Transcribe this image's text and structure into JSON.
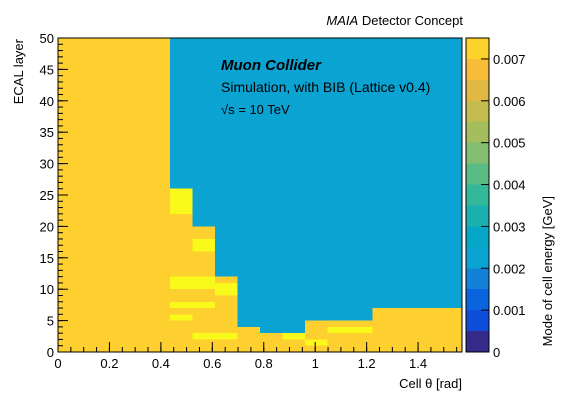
{
  "header": {
    "experiment": "MAIA",
    "concept": "Detector Concept"
  },
  "annotation": {
    "line1": "Muon Collider",
    "line2": "Simulation, with BIB (Lattice v0.4)",
    "line3_sqrt": "√s",
    "line3_value": " = 10 TeV"
  },
  "chart_data": {
    "type": "heatmap",
    "xlabel_prefix": "Cell",
    "xlabel": "θ [rad]",
    "ylabel": "ECAL layer",
    "zlabel": "Mode of cell energy [GeV]",
    "xlim": [
      0,
      1.5708
    ],
    "ylim": [
      0,
      50
    ],
    "zlim": [
      0,
      0.0075
    ],
    "xticks": [
      0,
      0.2,
      0.4,
      0.6,
      0.8,
      1,
      1.2,
      1.4
    ],
    "yticks": [
      0,
      5,
      10,
      15,
      20,
      25,
      30,
      35,
      40,
      45,
      50
    ],
    "zticks": [
      0,
      0.001,
      0.002,
      0.003,
      0.004,
      0.005,
      0.006,
      0.007
    ],
    "background_value": 0.002,
    "colors": {
      "background": "#0ba3d2",
      "high": "#fdcf2f",
      "peak": "#f9f91c"
    },
    "regions": [
      {
        "x": [
          0,
          0.436
        ],
        "y": [
          0,
          50
        ],
        "level": "high"
      },
      {
        "x": [
          0.436,
          0.523
        ],
        "y": [
          0,
          26
        ],
        "level": "high"
      },
      {
        "x": [
          0.523,
          0.61
        ],
        "y": [
          0,
          20
        ],
        "level": "high"
      },
      {
        "x": [
          0.61,
          0.698
        ],
        "y": [
          0,
          12
        ],
        "level": "high"
      },
      {
        "x": [
          0.698,
          0.785
        ],
        "y": [
          0,
          4
        ],
        "level": "high"
      },
      {
        "x": [
          0.785,
          0.872
        ],
        "y": [
          0,
          3
        ],
        "level": "high"
      },
      {
        "x": [
          0.872,
          0.96
        ],
        "y": [
          0,
          3
        ],
        "level": "high"
      },
      {
        "x": [
          0.96,
          1.047
        ],
        "y": [
          0,
          5
        ],
        "level": "high"
      },
      {
        "x": [
          1.047,
          1.134
        ],
        "y": [
          0,
          5
        ],
        "level": "high"
      },
      {
        "x": [
          1.134,
          1.222
        ],
        "y": [
          0,
          5
        ],
        "level": "high"
      },
      {
        "x": [
          1.222,
          1.5708
        ],
        "y": [
          0,
          7
        ],
        "level": "high"
      },
      {
        "x": [
          0.436,
          0.523
        ],
        "y": [
          22,
          26
        ],
        "level": "peak"
      },
      {
        "x": [
          0.523,
          0.61
        ],
        "y": [
          16,
          18
        ],
        "level": "peak"
      },
      {
        "x": [
          0.436,
          0.61
        ],
        "y": [
          10,
          12
        ],
        "level": "peak"
      },
      {
        "x": [
          0.61,
          0.698
        ],
        "y": [
          9,
          11
        ],
        "level": "peak"
      },
      {
        "x": [
          0.436,
          0.61
        ],
        "y": [
          7,
          8
        ],
        "level": "peak"
      },
      {
        "x": [
          0.436,
          0.523
        ],
        "y": [
          5,
          6
        ],
        "level": "peak"
      },
      {
        "x": [
          0.523,
          0.698
        ],
        "y": [
          2,
          3
        ],
        "level": "peak"
      },
      {
        "x": [
          0.872,
          0.96
        ],
        "y": [
          2,
          3
        ],
        "level": "peak"
      },
      {
        "x": [
          0.96,
          1.047
        ],
        "y": [
          1,
          2
        ],
        "level": "peak"
      },
      {
        "x": [
          1.047,
          1.134
        ],
        "y": [
          3,
          4
        ],
        "level": "peak"
      },
      {
        "x": [
          1.134,
          1.222
        ],
        "y": [
          3,
          4
        ],
        "level": "peak"
      }
    ],
    "palette": [
      {
        "z": 0.0,
        "color": "#352a87"
      },
      {
        "z": 0.0005,
        "color": "#0f4ed8"
      },
      {
        "z": 0.001,
        "color": "#0a64dd"
      },
      {
        "z": 0.0015,
        "color": "#1381d7"
      },
      {
        "z": 0.002,
        "color": "#0ba3d2"
      },
      {
        "z": 0.0025,
        "color": "#06a7c6"
      },
      {
        "z": 0.003,
        "color": "#1ab1ae"
      },
      {
        "z": 0.0035,
        "color": "#33b89a"
      },
      {
        "z": 0.004,
        "color": "#5abc85"
      },
      {
        "z": 0.0045,
        "color": "#83bd6f"
      },
      {
        "z": 0.005,
        "color": "#a5be5d"
      },
      {
        "z": 0.0055,
        "color": "#c3bc4f"
      },
      {
        "z": 0.006,
        "color": "#e0b844"
      },
      {
        "z": 0.0065,
        "color": "#f7bd38"
      },
      {
        "z": 0.007,
        "color": "#fbd32a"
      },
      {
        "z": 0.0075,
        "color": "#f9f91c"
      }
    ]
  }
}
